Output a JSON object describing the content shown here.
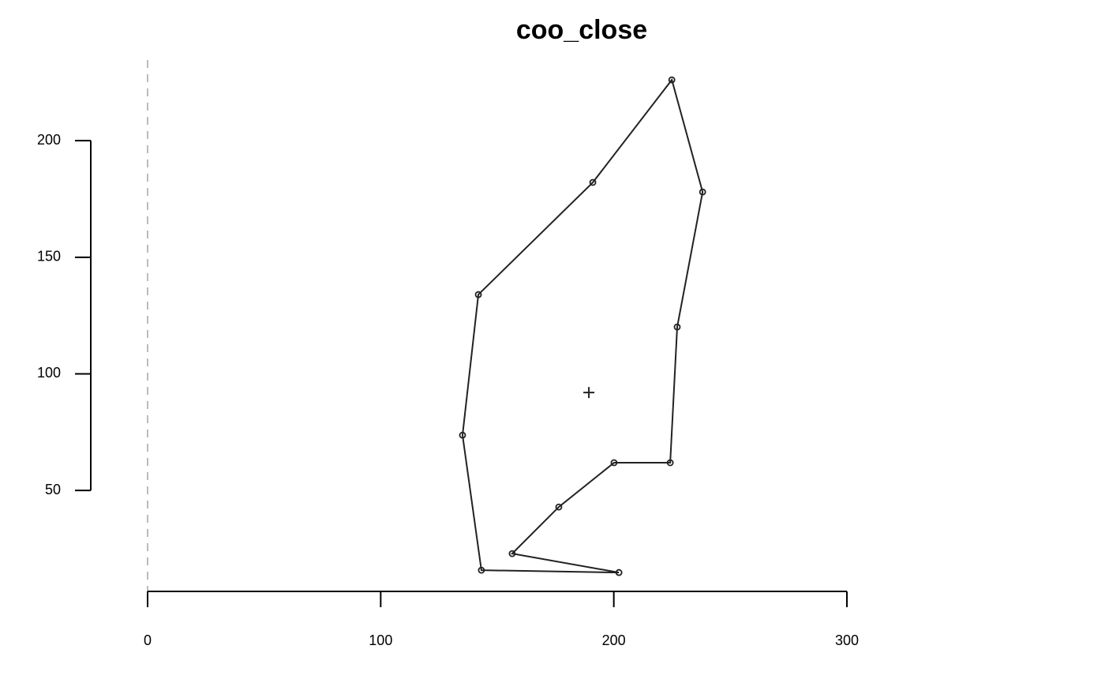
{
  "chart_data": {
    "type": "line",
    "title": "coo_close",
    "x": [
      202.2,
      156.4,
      176.4,
      200.1,
      224.2,
      227.2,
      238.1,
      224.9,
      191.0,
      141.9,
      135.1,
      143.2
    ],
    "series": [
      {
        "color": "#222222",
        "values": [
          14.8,
          22.9,
          42.9,
          61.9,
          61.9,
          120.1,
          178.0,
          226.1,
          182.1,
          134.0,
          73.7,
          15.8
        ]
      }
    ],
    "centroid": {
      "x": 189.3,
      "y": 92
    },
    "xlim": [
      0,
      300
    ],
    "ylim": [
      6.7,
      234.6
    ],
    "xticks": [
      0,
      100,
      200,
      300
    ],
    "yticks": [
      50,
      100,
      150,
      200
    ]
  }
}
